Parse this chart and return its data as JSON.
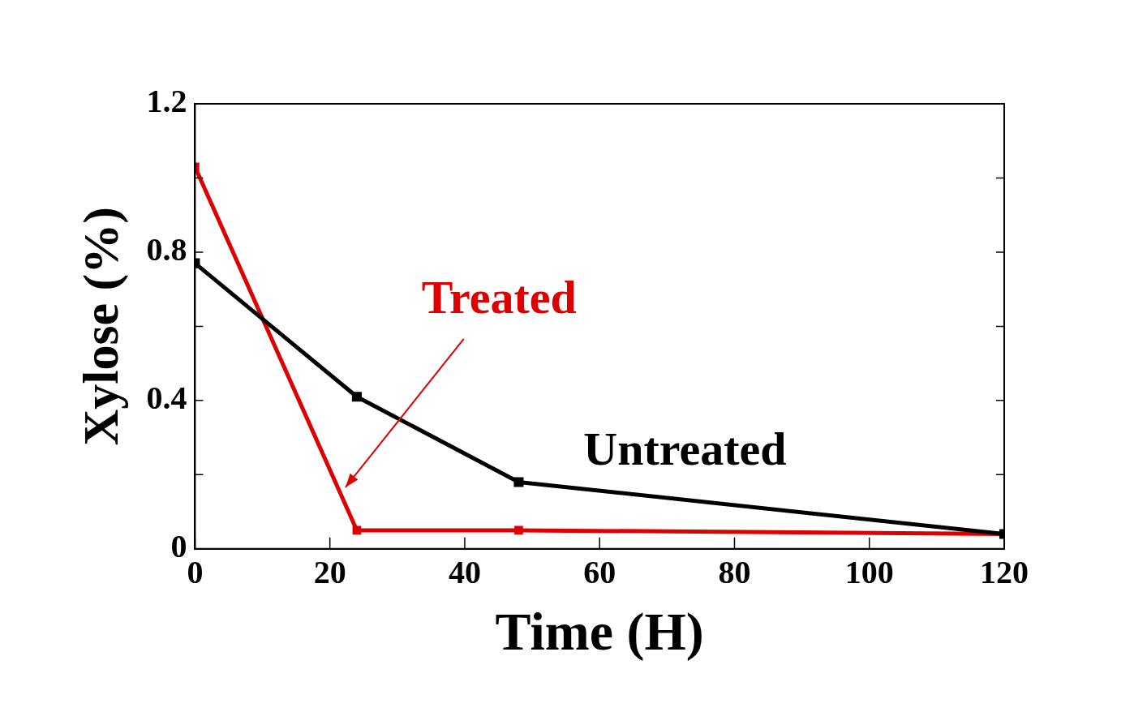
{
  "chart_data": {
    "type": "line",
    "xlabel": "Time (H)",
    "ylabel": "Xylose (%)",
    "x": [
      0,
      24,
      48,
      120
    ],
    "series": [
      {
        "name": "Treated",
        "color": "#dd0000",
        "values": [
          1.03,
          0.05,
          0.05,
          0.04
        ]
      },
      {
        "name": "Untreated",
        "color": "#000000",
        "values": [
          0.77,
          0.41,
          0.18,
          0.04
        ]
      }
    ],
    "xlim": [
      0,
      120
    ],
    "xticks": [
      0,
      20,
      40,
      60,
      80,
      100,
      120
    ],
    "ylim": [
      0,
      1.2
    ],
    "yticks": [
      0,
      {
        "value": 0.2,
        "label": null
      },
      0.4,
      {
        "value": 0.6,
        "label": null
      },
      0.8,
      {
        "value": 1.0,
        "label": null
      },
      1.2
    ],
    "grid": false,
    "legend": false,
    "marker": "square",
    "line_style": "solid"
  }
}
